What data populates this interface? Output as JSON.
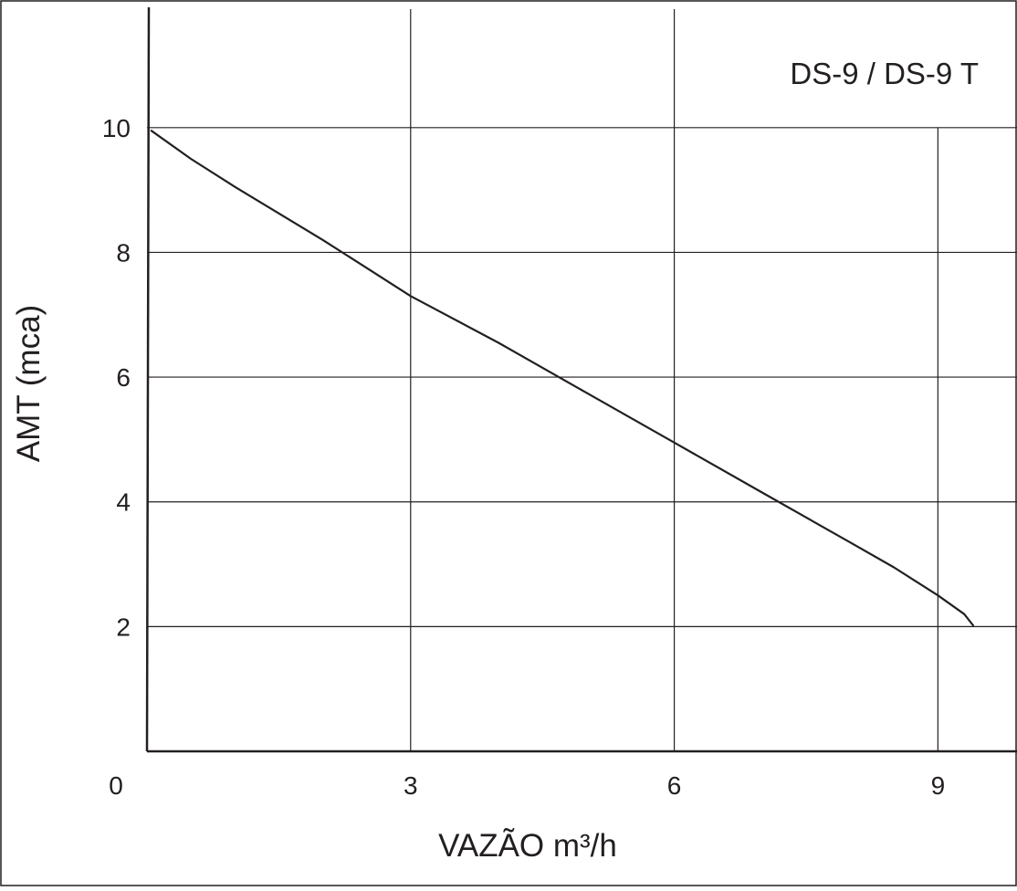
{
  "chart_data": {
    "type": "line",
    "title": "DS-9 / DS-9 T",
    "xlabel": "VAZÃO m³/h",
    "ylabel": "AMT (mca)",
    "origin_label": "0",
    "xlim": [
      0,
      9.9
    ],
    "ylim": [
      0,
      11.9
    ],
    "x_ticks": [
      {
        "value": 3,
        "label": "3"
      },
      {
        "value": 6,
        "label": "6"
      },
      {
        "value": 9,
        "label": "9"
      }
    ],
    "y_ticks": [
      {
        "value": 2,
        "label": "2"
      },
      {
        "value": 4,
        "label": "4"
      },
      {
        "value": 6,
        "label": "6"
      },
      {
        "value": 8,
        "label": "8"
      },
      {
        "value": 10,
        "label": "10"
      }
    ],
    "grid": true,
    "series": [
      {
        "x": [
          0.05,
          0.5,
          1.0,
          2.0,
          3.0,
          4.0,
          5.0,
          6.0,
          7.0,
          8.0,
          8.5,
          9.0,
          9.3,
          9.4
        ],
        "y": [
          9.95,
          9.5,
          9.05,
          8.2,
          7.3,
          6.55,
          5.75,
          4.95,
          4.15,
          3.35,
          2.95,
          2.5,
          2.2,
          2.02
        ]
      }
    ]
  },
  "colors": {
    "ink": "#231f20",
    "background": "#ffffff"
  }
}
